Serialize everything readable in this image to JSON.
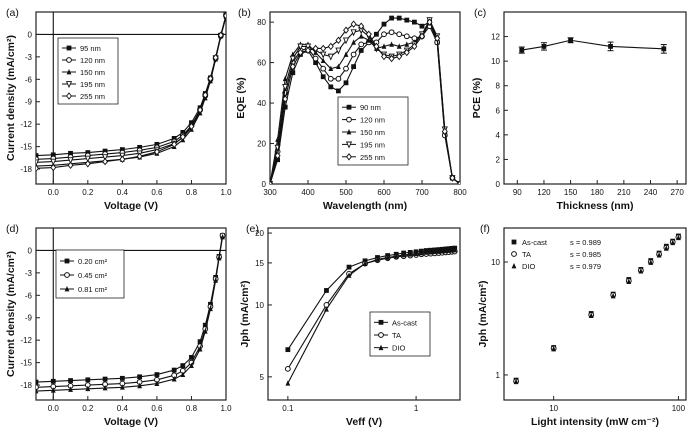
{
  "chart_data": [
    {
      "id": "a",
      "panel_label": "(a)",
      "type": "line",
      "xlabel": "Voltage (V)",
      "ylabel": "Current density (mA/cm²)",
      "xlim": [
        -0.1,
        1.0
      ],
      "ylim": [
        -20,
        3
      ],
      "xticks": [
        0.0,
        0.2,
        0.4,
        0.6,
        0.8,
        1.0
      ],
      "xtick_labels": [
        "0.0",
        "0.2",
        "0.4",
        "0.6",
        "0.8",
        "1.0"
      ],
      "yticks": [
        -18,
        -15,
        -12,
        -9,
        -6,
        -3,
        0
      ],
      "ytick_labels": [
        "-18",
        "-15",
        "-12",
        "-9",
        "-6",
        "-3",
        "0"
      ],
      "reference_lines": {
        "x": 0,
        "y": 0
      },
      "legend_position": "top-left",
      "series": [
        {
          "name": "95 nm",
          "marker": "square",
          "x": [
            -0.1,
            0,
            0.1,
            0.2,
            0.3,
            0.4,
            0.5,
            0.6,
            0.7,
            0.75,
            0.8,
            0.85,
            0.88,
            0.91,
            0.94,
            0.97,
            1.0
          ],
          "y": [
            -16.2,
            -16.1,
            -15.9,
            -15.8,
            -15.6,
            -15.4,
            -15.1,
            -14.7,
            -13.9,
            -13.1,
            -11.8,
            -9.8,
            -7.9,
            -5.8,
            -3.1,
            -0.1,
            2.6
          ]
        },
        {
          "name": "120 nm",
          "marker": "circle",
          "x": [
            -0.1,
            0,
            0.1,
            0.2,
            0.3,
            0.4,
            0.5,
            0.6,
            0.7,
            0.75,
            0.8,
            0.85,
            0.88,
            0.91,
            0.94,
            0.97,
            1.0
          ],
          "y": [
            -16.7,
            -16.6,
            -16.4,
            -16.2,
            -16.0,
            -15.8,
            -15.5,
            -15.1,
            -14.3,
            -13.5,
            -12.2,
            -10.1,
            -8.2,
            -6.0,
            -3.2,
            -0.2,
            2.5
          ]
        },
        {
          "name": "150 nm",
          "marker": "triangle-up",
          "x": [
            -0.1,
            0,
            0.1,
            0.2,
            0.3,
            0.4,
            0.5,
            0.6,
            0.7,
            0.75,
            0.8,
            0.85,
            0.88,
            0.91,
            0.94,
            0.97,
            1.0
          ],
          "y": [
            -17.6,
            -17.5,
            -17.3,
            -17.1,
            -16.9,
            -16.7,
            -16.4,
            -15.9,
            -15.0,
            -14.1,
            -12.7,
            -10.5,
            -8.5,
            -6.2,
            -3.3,
            -0.2,
            2.4
          ]
        },
        {
          "name": "195 nm",
          "marker": "triangle-down",
          "x": [
            -0.1,
            0,
            0.1,
            0.2,
            0.3,
            0.4,
            0.5,
            0.6,
            0.7,
            0.75,
            0.8,
            0.85,
            0.88,
            0.91,
            0.94,
            0.97,
            1.0
          ],
          "y": [
            -17.1,
            -17.0,
            -16.8,
            -16.6,
            -16.4,
            -16.2,
            -15.9,
            -15.4,
            -14.6,
            -13.8,
            -12.4,
            -10.3,
            -8.3,
            -6.1,
            -3.2,
            -0.2,
            2.4
          ]
        },
        {
          "name": "255 nm",
          "marker": "diamond",
          "x": [
            -0.1,
            0,
            0.1,
            0.2,
            0.3,
            0.4,
            0.5,
            0.6,
            0.7,
            0.75,
            0.8,
            0.85,
            0.88,
            0.91,
            0.94,
            0.97,
            1.0
          ],
          "y": [
            -17.9,
            -17.8,
            -17.5,
            -17.3,
            -17.0,
            -16.7,
            -16.3,
            -15.7,
            -14.7,
            -13.7,
            -12.3,
            -10.1,
            -8.1,
            -5.9,
            -3.1,
            -0.1,
            2.5
          ]
        }
      ]
    },
    {
      "id": "b",
      "panel_label": "(b)",
      "type": "line",
      "xlabel": "Wavelength (nm)",
      "ylabel": "EQE (%)",
      "xlim": [
        300,
        800
      ],
      "ylim": [
        0,
        85
      ],
      "xticks": [
        300,
        400,
        500,
        600,
        700,
        800
      ],
      "xtick_labels": [
        "300",
        "400",
        "500",
        "600",
        "700",
        "800"
      ],
      "yticks": [
        0,
        20,
        40,
        60,
        80
      ],
      "ytick_labels": [
        "0",
        "20",
        "40",
        "60",
        "80"
      ],
      "legend_position": "center",
      "series": [
        {
          "name": "90 nm",
          "marker": "square",
          "x": [
            300,
            320,
            340,
            360,
            380,
            400,
            420,
            440,
            460,
            480,
            500,
            520,
            540,
            560,
            580,
            600,
            620,
            640,
            660,
            680,
            700,
            720,
            740,
            760,
            780,
            800
          ],
          "y": [
            0,
            12,
            38,
            55,
            64,
            66,
            60,
            53,
            48,
            46,
            50,
            58,
            66,
            70,
            74,
            79,
            82,
            82,
            81,
            80,
            78,
            80,
            70,
            25,
            3,
            0
          ]
        },
        {
          "name": "120 nm",
          "marker": "circle",
          "x": [
            300,
            320,
            340,
            360,
            380,
            400,
            420,
            440,
            460,
            480,
            500,
            520,
            540,
            560,
            580,
            600,
            620,
            640,
            660,
            680,
            700,
            720,
            740,
            760,
            780,
            800
          ],
          "y": [
            0,
            16,
            45,
            60,
            66,
            67,
            62,
            57,
            52,
            52,
            57,
            64,
            69,
            70,
            70,
            74,
            75,
            74,
            73,
            72,
            73,
            78,
            70,
            24,
            3,
            0
          ]
        },
        {
          "name": "150 nm",
          "marker": "triangle-up",
          "x": [
            300,
            320,
            340,
            360,
            380,
            400,
            420,
            440,
            460,
            480,
            500,
            520,
            540,
            560,
            580,
            600,
            620,
            640,
            660,
            680,
            700,
            720,
            740,
            760,
            780,
            800
          ],
          "y": [
            0,
            22,
            52,
            64,
            69,
            69,
            65,
            61,
            57,
            58,
            64,
            70,
            73,
            71,
            67,
            68,
            69,
            68,
            69,
            70,
            74,
            80,
            72,
            26,
            3,
            0
          ]
        },
        {
          "name": "195 nm",
          "marker": "triangle-down",
          "x": [
            300,
            320,
            340,
            360,
            380,
            400,
            420,
            440,
            460,
            480,
            500,
            520,
            540,
            560,
            580,
            600,
            620,
            640,
            660,
            680,
            700,
            720,
            740,
            760,
            780,
            800
          ],
          "y": [
            0,
            18,
            48,
            62,
            68,
            68,
            66,
            64,
            63,
            66,
            71,
            75,
            76,
            73,
            67,
            64,
            63,
            64,
            66,
            69,
            74,
            81,
            73,
            27,
            3,
            0
          ]
        },
        {
          "name": "255 nm",
          "marker": "diamond",
          "x": [
            300,
            320,
            340,
            360,
            380,
            400,
            420,
            440,
            460,
            480,
            500,
            520,
            540,
            560,
            580,
            600,
            620,
            640,
            660,
            680,
            700,
            720,
            740,
            760,
            780,
            800
          ],
          "y": [
            0,
            14,
            42,
            58,
            65,
            66,
            67,
            67,
            68,
            71,
            76,
            79,
            78,
            74,
            68,
            63,
            62,
            63,
            65,
            68,
            73,
            80,
            72,
            26,
            3,
            0
          ]
        }
      ]
    },
    {
      "id": "c",
      "panel_label": "(c)",
      "type": "line",
      "xlabel": "Thickness (nm)",
      "ylabel": "PCE (%)",
      "xlim": [
        75,
        280
      ],
      "ylim": [
        0,
        14
      ],
      "xticks": [
        90,
        120,
        150,
        180,
        210,
        240,
        270
      ],
      "xtick_labels": [
        "90",
        "120",
        "150",
        "180",
        "210",
        "240",
        "270"
      ],
      "yticks": [
        0,
        2,
        4,
        6,
        8,
        10,
        12
      ],
      "ytick_labels": [
        "0",
        "2",
        "4",
        "6",
        "8",
        "10",
        "12"
      ],
      "series": [
        {
          "marker": "square",
          "x": [
            95,
            120,
            150,
            195,
            255
          ],
          "y": [
            10.9,
            11.2,
            11.7,
            11.2,
            11.0
          ],
          "error": [
            0.25,
            0.3,
            0.2,
            0.35,
            0.35
          ]
        }
      ]
    },
    {
      "id": "d",
      "panel_label": "(d)",
      "type": "line",
      "xlabel": "Voltage (V)",
      "ylabel": "Current density (mA/cm²)",
      "xlim": [
        -0.1,
        1.0
      ],
      "ylim": [
        -20,
        3
      ],
      "xticks": [
        0.0,
        0.2,
        0.4,
        0.6,
        0.8,
        1.0
      ],
      "xtick_labels": [
        "0.0",
        "0.2",
        "0.4",
        "0.6",
        "0.8",
        "1.0"
      ],
      "yticks": [
        -18,
        -15,
        -12,
        -9,
        -6,
        -3,
        0
      ],
      "ytick_labels": [
        "-18",
        "-15",
        "-12",
        "-9",
        "-6",
        "-3",
        "0"
      ],
      "reference_lines": {
        "x": 0,
        "y": 0
      },
      "legend_position": "top-left",
      "series": [
        {
          "name": "0.20 cm²",
          "marker": "square",
          "x": [
            -0.1,
            0,
            0.1,
            0.2,
            0.3,
            0.4,
            0.5,
            0.6,
            0.7,
            0.75,
            0.8,
            0.85,
            0.88,
            0.91,
            0.94,
            0.96,
            0.98
          ],
          "y": [
            -17.6,
            -17.5,
            -17.4,
            -17.3,
            -17.2,
            -17.1,
            -16.9,
            -16.6,
            -16.0,
            -15.4,
            -14.3,
            -12.2,
            -10.0,
            -7.2,
            -3.6,
            -0.8,
            2.0
          ]
        },
        {
          "name": "0.45 cm²",
          "marker": "circle",
          "x": [
            -0.1,
            0,
            0.1,
            0.2,
            0.3,
            0.4,
            0.5,
            0.6,
            0.7,
            0.75,
            0.8,
            0.85,
            0.88,
            0.91,
            0.94,
            0.96,
            0.98
          ],
          "y": [
            -18.3,
            -18.2,
            -18.1,
            -18.0,
            -17.9,
            -17.8,
            -17.6,
            -17.3,
            -16.7,
            -16.1,
            -15.0,
            -12.8,
            -10.5,
            -7.5,
            -3.8,
            -0.9,
            2.0
          ]
        },
        {
          "name": "0.81 cm²",
          "marker": "triangle-up",
          "x": [
            -0.1,
            0,
            0.1,
            0.2,
            0.3,
            0.4,
            0.5,
            0.6,
            0.7,
            0.75,
            0.8,
            0.85,
            0.88,
            0.91,
            0.94,
            0.96,
            0.98
          ],
          "y": [
            -18.8,
            -18.7,
            -18.6,
            -18.5,
            -18.4,
            -18.3,
            -18.1,
            -17.8,
            -17.2,
            -16.6,
            -15.4,
            -13.2,
            -10.8,
            -7.8,
            -4.0,
            -1.0,
            1.8
          ]
        }
      ]
    },
    {
      "id": "e",
      "panel_label": "(e)",
      "type": "line",
      "xlabel": "Veff (V)",
      "ylabel": "Jph (mA/cm²)",
      "x_scale": "log",
      "y_scale": "log",
      "xlim": [
        0.07,
        2.2
      ],
      "ylim": [
        4,
        21
      ],
      "xticks": [
        0.1,
        1
      ],
      "xtick_labels": [
        "0.1",
        "1"
      ],
      "yticks": [
        5,
        10,
        15,
        20
      ],
      "ytick_labels": [
        "5",
        "10",
        "15",
        "20"
      ],
      "legend_position": "center-right",
      "series": [
        {
          "name": "As-cast",
          "marker": "square",
          "x": [
            0.1,
            0.2,
            0.3,
            0.4,
            0.5,
            0.6,
            0.7,
            0.8,
            0.9,
            1.0,
            1.1,
            1.2,
            1.3,
            1.4,
            1.5,
            1.6,
            1.7,
            1.8,
            1.9,
            2.0
          ],
          "y": [
            6.5,
            11.5,
            14.4,
            15.3,
            15.8,
            16.1,
            16.3,
            16.5,
            16.6,
            16.7,
            16.8,
            16.9,
            16.95,
            17.0,
            17.05,
            17.1,
            17.15,
            17.2,
            17.25,
            17.3
          ]
        },
        {
          "name": "TA",
          "marker": "circle",
          "x": [
            0.1,
            0.2,
            0.3,
            0.4,
            0.5,
            0.6,
            0.7,
            0.8,
            0.9,
            1.0,
            1.1,
            1.2,
            1.3,
            1.4,
            1.5,
            1.6,
            1.7,
            1.8,
            1.9,
            2.0
          ],
          "y": [
            5.4,
            10.0,
            13.5,
            14.9,
            15.4,
            15.7,
            15.9,
            16.0,
            16.1,
            16.2,
            16.3,
            16.35,
            16.4,
            16.45,
            16.5,
            16.55,
            16.6,
            16.65,
            16.7,
            16.75
          ]
        },
        {
          "name": "DIO",
          "marker": "triangle-up",
          "x": [
            0.1,
            0.2,
            0.3,
            0.4,
            0.5,
            0.6,
            0.7,
            0.8,
            0.9,
            1.0,
            1.1,
            1.2,
            1.3,
            1.4,
            1.5,
            1.6,
            1.7,
            1.8,
            1.9,
            2.0
          ],
          "y": [
            4.7,
            9.6,
            13.3,
            14.9,
            15.5,
            15.8,
            16.0,
            16.2,
            16.3,
            16.4,
            16.5,
            16.6,
            16.65,
            16.7,
            16.75,
            16.8,
            16.85,
            16.9,
            16.95,
            17.0
          ]
        }
      ]
    },
    {
      "id": "f",
      "panel_label": "(f)",
      "type": "scatter",
      "xlabel": "Light intensity (mW cm⁻²)",
      "ylabel": "Jph (mA/cm²)",
      "x_scale": "log",
      "y_scale": "log",
      "xlim": [
        4,
        115
      ],
      "ylim": [
        0.6,
        20
      ],
      "xticks": [
        10,
        100
      ],
      "xtick_labels": [
        "10",
        "100"
      ],
      "yticks": [
        1,
        10
      ],
      "ytick_labels": [
        "1",
        "10"
      ],
      "legend_position": "top-left",
      "series": [
        {
          "name": "As-cast",
          "marker": "square",
          "slope_label": "s = 0.989",
          "x": [
            5,
            10,
            20,
            30,
            40,
            50,
            60,
            70,
            80,
            90,
            100
          ],
          "y": [
            0.9,
            1.75,
            3.5,
            5.2,
            7.0,
            8.6,
            10.3,
            12.0,
            13.8,
            15.3,
            17.0
          ]
        },
        {
          "name": "TA",
          "marker": "circle",
          "slope_label": "s = 0.985",
          "x": [
            5,
            10,
            20,
            30,
            40,
            50,
            60,
            70,
            80,
            90,
            100
          ],
          "y": [
            0.88,
            1.72,
            3.4,
            5.1,
            6.8,
            8.4,
            10.0,
            11.7,
            13.4,
            15.0,
            16.6
          ]
        },
        {
          "name": "DIO",
          "marker": "triangle-up",
          "slope_label": "s = 0.979",
          "x": [
            5,
            10,
            20,
            30,
            40,
            50,
            60,
            70,
            80,
            90,
            100
          ],
          "y": [
            0.87,
            1.7,
            3.35,
            5.0,
            6.7,
            8.3,
            9.9,
            11.5,
            13.2,
            14.8,
            16.4
          ]
        }
      ]
    }
  ]
}
